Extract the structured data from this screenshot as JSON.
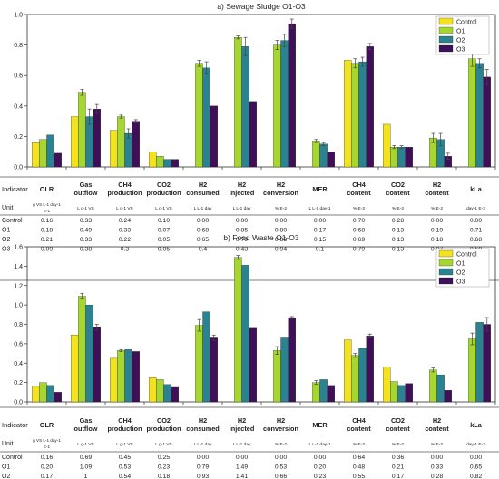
{
  "legend": {
    "items": [
      {
        "label": "Control",
        "color": "#f5e21e"
      },
      {
        "label": "O1",
        "color": "#a6d630"
      },
      {
        "label": "O2",
        "color": "#2b8290"
      },
      {
        "label": "O3",
        "color": "#3f0f57"
      }
    ]
  },
  "table_labels": {
    "indicator": "Indicator",
    "unit": "Unit"
  },
  "chart_data": [
    {
      "type": "bar",
      "title": "a) Sewage Sludge O1-O3",
      "ylim": [
        0,
        1.0
      ],
      "yticks": [
        "0.0",
        "0.2",
        "0.4",
        "0.6",
        "0.8",
        "1.0"
      ],
      "yticks_values": [
        0,
        0.2,
        0.4,
        0.6,
        0.8,
        1.0
      ],
      "categories": [
        "OLR",
        "Gas outflow",
        "CH4 production",
        "CO2 production",
        "H2 consumed",
        "H2 injected",
        "H2 conversion",
        "MER",
        "CH4 content",
        "CO2 content",
        "H2 content",
        "kLa"
      ],
      "category_lines": [
        [
          "OLR"
        ],
        [
          "Gas",
          "outflow"
        ],
        [
          "CH4",
          "production"
        ],
        [
          "CO2",
          "production"
        ],
        [
          "H2",
          "consumed"
        ],
        [
          "H2",
          "injected"
        ],
        [
          "H2",
          "conversion"
        ],
        [
          "MER"
        ],
        [
          "CH4",
          "content"
        ],
        [
          "CO2",
          "content"
        ],
        [
          "H2",
          "content"
        ],
        [
          "kLa"
        ]
      ],
      "units": [
        "g VS L-1 day-1 E-1",
        "L g-1 VS",
        "L g-1 VS",
        "L g-1 VS",
        "L L-1 day",
        "L L-1 day",
        "% E-2",
        "L L-1 day-1",
        "% E-2",
        "% E-2",
        "% E-2",
        "day-1 E-2"
      ],
      "series": [
        {
          "name": "Control",
          "values": [
            0.16,
            0.33,
            0.24,
            0.1,
            0.0,
            0.0,
            0.0,
            0.0,
            0.7,
            0.28,
            0.0,
            0.0
          ],
          "labels": [
            "0.16",
            "0.33",
            "0.24",
            "0.10",
            "0.00",
            "0.00",
            "0.00",
            "0.00",
            "0.70",
            "0.28",
            "0.00",
            "0.00"
          ]
        },
        {
          "name": "O1",
          "values": [
            0.18,
            0.49,
            0.33,
            0.07,
            0.68,
            0.85,
            0.8,
            0.17,
            0.68,
            0.13,
            0.19,
            0.71
          ],
          "labels": [
            "0.18",
            "0.49",
            "0.33",
            "0.07",
            "0.68",
            "0.85",
            "0.80",
            "0.17",
            "0.68",
            "0.13",
            "0.19",
            "0.71"
          ]
        },
        {
          "name": "O2",
          "values": [
            0.21,
            0.33,
            0.22,
            0.05,
            0.65,
            0.79,
            0.83,
            0.15,
            0.69,
            0.13,
            0.18,
            0.68
          ],
          "labels": [
            "0.21",
            "0.33",
            "0.22",
            "0.05",
            "0.65",
            "0.79",
            "0.83",
            "0.15",
            "0.69",
            "0.13",
            "0.18",
            "0.68"
          ]
        },
        {
          "name": "O3",
          "values": [
            0.09,
            0.38,
            0.3,
            0.05,
            0.4,
            0.43,
            0.94,
            0.1,
            0.79,
            0.13,
            0.07,
            0.59
          ],
          "labels": [
            "0.09",
            "0.38",
            "0.3",
            "0.05",
            "0.4",
            "0.43",
            "0.94",
            "0.1",
            "0.79",
            "0.13",
            "0.07",
            "0.59"
          ]
        }
      ],
      "errors": [
        [
          0.0,
          0.0,
          0.0,
          0.0,
          0.0,
          0.0,
          0.0,
          0.0,
          0.0,
          0.0,
          0.0,
          0.0
        ],
        [
          0.0,
          0.02,
          0.01,
          0.0,
          0.02,
          0.01,
          0.03,
          0.01,
          0.03,
          0.01,
          0.03,
          0.05
        ],
        [
          0.0,
          0.05,
          0.03,
          0.0,
          0.04,
          0.06,
          0.04,
          0.01,
          0.03,
          0.01,
          0.04,
          0.03
        ],
        [
          0.0,
          0.03,
          0.01,
          0.0,
          0.0,
          0.0,
          0.03,
          0.0,
          0.02,
          0.0,
          0.02,
          0.05
        ]
      ]
    },
    {
      "type": "bar",
      "title": "b) Food Waste O1-O3",
      "ylim": [
        0,
        1.6
      ],
      "yticks": [
        "0.0",
        "0.2",
        "0.4",
        "0.6",
        "0.8",
        "1.0",
        "1.2",
        "1.4",
        "1.6"
      ],
      "yticks_values": [
        0,
        0.2,
        0.4,
        0.6,
        0.8,
        1.0,
        1.2,
        1.4,
        1.6
      ],
      "categories": [
        "OLR",
        "Gas outflow",
        "CH4 production",
        "CO2 production",
        "H2 consumed",
        "H2 injected",
        "H2 conversion",
        "MER",
        "CH4 content",
        "CO2 content",
        "H2 content",
        "kLa"
      ],
      "category_lines": [
        [
          "OLR"
        ],
        [
          "Gas",
          "outflow"
        ],
        [
          "CH4",
          "production"
        ],
        [
          "CO2",
          "production"
        ],
        [
          "H2",
          "consumed"
        ],
        [
          "H2",
          "injected"
        ],
        [
          "H2",
          "conversion"
        ],
        [
          "MER"
        ],
        [
          "CH4",
          "content"
        ],
        [
          "CO2",
          "content"
        ],
        [
          "H2",
          "content"
        ],
        [
          "kLa"
        ]
      ],
      "units": [
        "g VS L-1 day-1 E-1",
        "L g-1 VS",
        "L g-1 VS",
        "L g-1 VS",
        "L L-1 day",
        "L L-1 day",
        "% E-2",
        "L L-1 day-1",
        "% E-2",
        "% E-2",
        "% E-2",
        "day-1 E-2"
      ],
      "series": [
        {
          "name": "Control",
          "values": [
            0.16,
            0.69,
            0.45,
            0.25,
            0.0,
            0.0,
            0.0,
            0.0,
            0.64,
            0.36,
            0.0,
            0.0
          ],
          "labels": [
            "0.16",
            "0.69",
            "0.45",
            "0.25",
            "0.00",
            "0.00",
            "0.00",
            "0.00",
            "0.64",
            "0.36",
            "0.00",
            "0.00"
          ]
        },
        {
          "name": "O1",
          "values": [
            0.2,
            1.09,
            0.53,
            0.23,
            0.79,
            1.49,
            0.53,
            0.2,
            0.48,
            0.21,
            0.33,
            0.65
          ],
          "labels": [
            "0.20",
            "1.09",
            "0.53",
            "0.23",
            "0.79",
            "1.49",
            "0.53",
            "0.20",
            "0.48",
            "0.21",
            "0.33",
            "0.65"
          ]
        },
        {
          "name": "O2",
          "values": [
            0.17,
            1.0,
            0.54,
            0.18,
            0.93,
            1.41,
            0.66,
            0.23,
            0.55,
            0.17,
            0.28,
            0.82
          ],
          "labels": [
            "0.17",
            "1",
            "0.54",
            "0.18",
            "0.93",
            "1.41",
            "0.66",
            "0.23",
            "0.55",
            "0.17",
            "0.28",
            "0.82"
          ]
        },
        {
          "name": "O3",
          "values": [
            0.1,
            0.77,
            0.52,
            0.15,
            0.66,
            0.76,
            0.87,
            0.17,
            0.68,
            0.19,
            0.12,
            0.8
          ],
          "labels": [
            "0.1",
            "0.77",
            "0.52",
            "0.15",
            "0.66",
            "0.76",
            "0.87",
            "0.17",
            "0.68",
            "0.19",
            "0.12",
            "0.8"
          ]
        }
      ],
      "errors": [
        [
          0.0,
          0.0,
          0.0,
          0.0,
          0.0,
          0.0,
          0.0,
          0.0,
          0.0,
          0.0,
          0.0,
          0.0
        ],
        [
          0.0,
          0.03,
          0.01,
          0.0,
          0.06,
          0.02,
          0.04,
          0.02,
          0.02,
          0.0,
          0.02,
          0.06
        ],
        [
          0.0,
          0.0,
          0.0,
          0.0,
          0.0,
          0.0,
          0.0,
          0.0,
          0.0,
          0.0,
          0.0,
          0.0
        ],
        [
          0.0,
          0.03,
          0.0,
          0.0,
          0.03,
          0.0,
          0.01,
          0.0,
          0.02,
          0.0,
          0.0,
          0.07
        ]
      ]
    }
  ]
}
